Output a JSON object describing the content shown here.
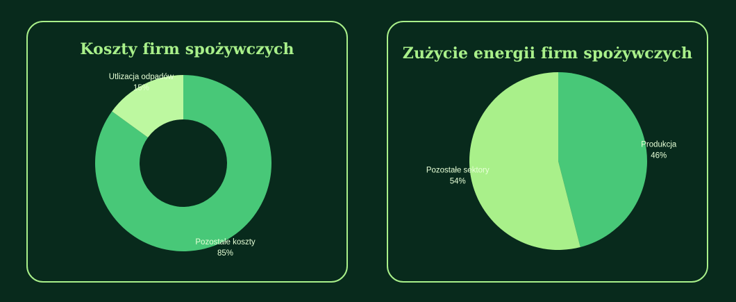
{
  "chart_data": [
    {
      "type": "pie",
      "variant": "donut",
      "title": "Koszty firm spożywczych",
      "slices": [
        {
          "label": "Pozostałe koszty",
          "value_label": "85%",
          "value": 85,
          "color": "#48c878"
        },
        {
          "label": "Utlizacja odpadów",
          "value_label": "15%",
          "value": 15,
          "color": "#bdf8a0"
        }
      ]
    },
    {
      "type": "pie",
      "title": "Zużycie energii firm spożywczych",
      "slices": [
        {
          "label": "Produkcja",
          "value_label": "46%",
          "value": 46,
          "color": "#48c878"
        },
        {
          "label": "Pozostałe sektory",
          "value_label": "54%",
          "value": 54,
          "color": "#a9f08a"
        }
      ]
    }
  ],
  "colors": {
    "background": "#082a1c",
    "panel_border": "#a9f08a",
    "title": "#a9f08a",
    "label": "#e6ffd6"
  }
}
